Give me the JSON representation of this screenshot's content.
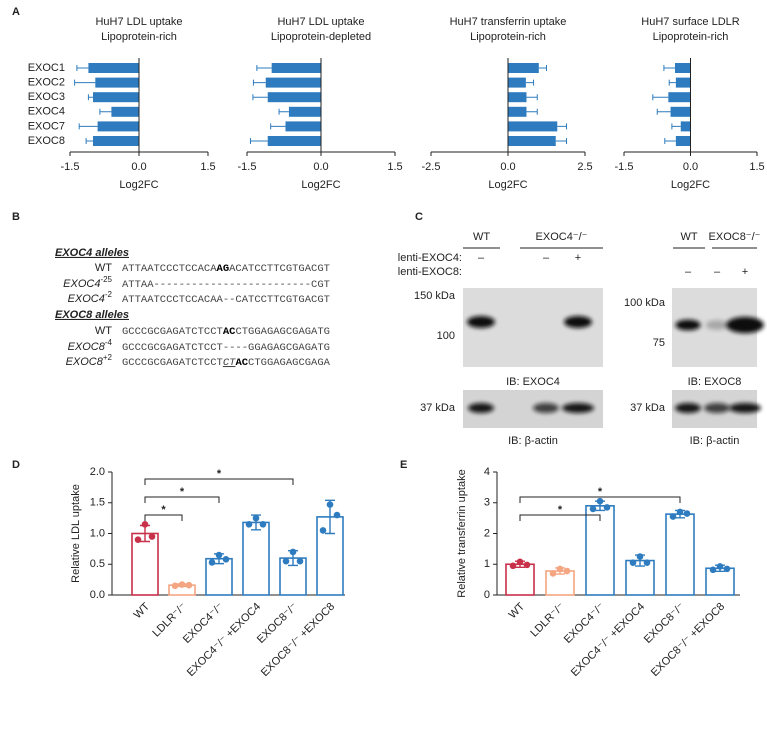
{
  "panel_labels": [
    "A",
    "B",
    "C",
    "D",
    "E"
  ],
  "chart_data": [
    {
      "type": "hbar",
      "title": "HuH7 LDL uptake",
      "subtitle": "Lipoprotein-rich",
      "categories": [
        "EXOC1",
        "EXOC2",
        "EXOC3",
        "EXOC4",
        "EXOC7",
        "EXOC8"
      ],
      "values": [
        -1.1,
        -0.95,
        -1.0,
        -0.6,
        -0.9,
        -1.0
      ],
      "errors": [
        0.25,
        0.45,
        0.1,
        0.25,
        0.4,
        0.15
      ],
      "color": "#2e7cbf",
      "xlim": [
        -1.5,
        1.5
      ],
      "xticks": [
        -1.5,
        {
          "value": 0,
          "label": "0.0"
        },
        1.5
      ],
      "xlabel": "Log2FC"
    },
    {
      "type": "hbar",
      "title": "HuH7 LDL uptake",
      "subtitle": "Lipoprotein-depleted",
      "values": [
        -1.0,
        -1.12,
        -1.08,
        -0.65,
        -0.72,
        -1.08
      ],
      "errors": [
        0.3,
        0.25,
        0.3,
        0.2,
        0.3,
        0.35
      ],
      "color": "#2e7cbf",
      "xlim": [
        -1.5,
        1.5
      ],
      "xticks": [
        -1.5,
        {
          "value": 0,
          "label": "0.0"
        },
        1.5
      ],
      "xlabel": "Log2FC"
    },
    {
      "type": "hbar",
      "title": "HuH7 transferrin uptake",
      "subtitle": "Lipoprotein-rich",
      "values": [
        1.0,
        0.58,
        0.6,
        0.6,
        1.6,
        1.55
      ],
      "errors": [
        0.25,
        0.25,
        0.35,
        0.35,
        0.3,
        0.35
      ],
      "color": "#2e7cbf",
      "xlim": [
        -2.5,
        2.5
      ],
      "xticks": [
        -2.5,
        {
          "value": 0,
          "label": "0.0"
        },
        2.5
      ],
      "xlabel": "Log2FC"
    },
    {
      "type": "hbar",
      "title": "HuH7 surface LDLR",
      "subtitle": "Lipoprotein-rich",
      "values": [
        -0.35,
        -0.33,
        -0.5,
        -0.45,
        -0.22,
        -0.33
      ],
      "errors": [
        0.25,
        0.15,
        0.35,
        0.3,
        0.2,
        0.25
      ],
      "color": "#2e7cbf",
      "xlim": [
        -1.5,
        1.5
      ],
      "xticks": [
        -1.5,
        {
          "value": 0,
          "label": "0.0"
        },
        1.5
      ],
      "xlabel": "Log2FC"
    },
    {
      "type": "bar_dots",
      "ylabel": "Relative LDL uptake",
      "categories": [
        "WT",
        "LDLR⁻/⁻",
        "EXOC4⁻/⁻",
        "EXOC4⁻/⁻ +EXOC4",
        "EXOC8⁻/⁻",
        "EXOC8⁻/⁻ +EXOC8"
      ],
      "values": [
        1.0,
        0.16,
        0.59,
        1.18,
        0.6,
        1.27
      ],
      "errors": [
        0.13,
        0.02,
        0.08,
        0.12,
        0.12,
        0.27
      ],
      "points": [
        [
          0.9,
          1.15,
          0.95
        ],
        [
          0.15,
          0.17,
          0.16
        ],
        [
          0.53,
          0.65,
          0.58
        ],
        [
          1.15,
          1.25,
          1.15
        ],
        [
          0.55,
          0.7,
          0.55
        ],
        [
          1.05,
          1.47,
          1.3
        ]
      ],
      "colors": [
        "#c8314a",
        "#f4a582",
        "#2e7cbf",
        "#2e7cbf",
        "#2e7cbf",
        "#2e7cbf"
      ],
      "ylim": [
        0,
        2
      ],
      "yticks": [
        {
          "value": 0,
          "label": "0.0"
        },
        0.5,
        {
          "value": 1,
          "label": "1.0"
        },
        1.5,
        {
          "value": 2,
          "label": "2.0"
        }
      ],
      "significance": [
        {
          "between": [
            "WT",
            "LDLR⁻/⁻"
          ],
          "label": "*"
        },
        {
          "between": [
            "WT",
            "EXOC4⁻/⁻"
          ],
          "label": "*"
        },
        {
          "between": [
            "WT",
            "EXOC8⁻/⁻"
          ],
          "label": "*"
        }
      ]
    },
    {
      "type": "bar_dots",
      "ylabel": "Relative transferrin uptake",
      "categories": [
        "WT",
        "LDLR⁻/⁻",
        "EXOC4⁻/⁻",
        "EXOC4⁻/⁻ +EXOC4",
        "EXOC8⁻/⁻",
        "EXOC8⁻/⁻ +EXOC8"
      ],
      "values": [
        1.0,
        0.78,
        2.9,
        1.12,
        2.63,
        0.87
      ],
      "errors": [
        0.1,
        0.1,
        0.15,
        0.18,
        0.12,
        0.1
      ],
      "points": [
        [
          0.95,
          1.08,
          0.98
        ],
        [
          0.7,
          0.85,
          0.78
        ],
        [
          2.8,
          3.05,
          2.85
        ],
        [
          1.05,
          1.25,
          1.05
        ],
        [
          2.55,
          2.7,
          2.65
        ],
        [
          0.82,
          0.93,
          0.85
        ]
      ],
      "colors": [
        "#c8314a",
        "#f4a582",
        "#2e7cbf",
        "#2e7cbf",
        "#2e7cbf",
        "#2e7cbf"
      ],
      "ylim": [
        0,
        4
      ],
      "yticks": [
        0,
        1,
        2,
        3,
        4
      ],
      "significance": [
        {
          "between": [
            "WT",
            "EXOC4⁻/⁻"
          ],
          "label": "*"
        },
        {
          "between": [
            "WT",
            "EXOC8⁻/⁻"
          ],
          "label": "*"
        }
      ]
    }
  ],
  "alleles": [
    {
      "heading": "EXOC4 alleles",
      "rows": [
        {
          "name": "WT",
          "seq": [
            {
              "text": "ATTAATCCCTCCACA"
            },
            {
              "text": "AG",
              "style": "bold"
            },
            {
              "text": "ACATCCTTCGTGACGT"
            }
          ]
        },
        {
          "name": "EXOC4",
          "sup": "-25",
          "seq": [
            {
              "text": "ATTAA-------------------------CGT"
            }
          ]
        },
        {
          "name": "EXOC4",
          "sup": "-2",
          "seq": [
            {
              "text": "ATTAATCCCTCCACAA--CATCCTTCGTGACGT"
            }
          ]
        }
      ]
    },
    {
      "heading": "EXOC8 alleles",
      "rows": [
        {
          "name": "WT",
          "seq": [
            {
              "text": "GCCCGCGAGATCTCCT"
            },
            {
              "text": "AC",
              "style": "bold"
            },
            {
              "text": "CTGGAGAGCGAGATG"
            }
          ]
        },
        {
          "name": "EXOC8",
          "sup": "-4",
          "seq": [
            {
              "text": "GCCCGCGAGATCTCCT----GGAGAGCGAGATG"
            }
          ]
        },
        {
          "name": "EXOC8",
          "sup": "+2",
          "seq": [
            {
              "text": "GCCCGCGAGATCTCCT"
            },
            {
              "text": "CT",
              "style": "underline-italic"
            },
            {
              "text": "AC",
              "style": "bold"
            },
            {
              "text": "CTGGAGAGCGAGA"
            }
          ]
        }
      ]
    }
  ],
  "blots": [
    {
      "groups": [
        "WT",
        "EXOC4⁻/⁻"
      ],
      "treatment": "lenti-EXOC4:",
      "signs": [
        "–",
        "–",
        "+"
      ],
      "markers": [
        "150 kDa",
        "100"
      ],
      "ib_top": "IB: EXOC4",
      "marker_bottom": "37 kDa",
      "ib_bottom": "IB: β-actin"
    },
    {
      "groups": [
        "WT",
        "EXOC8⁻/⁻"
      ],
      "treatment": "lenti-EXOC8:",
      "signs": [
        "–",
        "–",
        "+"
      ],
      "markers": [
        "100 kDa",
        "75"
      ],
      "ib_top": "IB: EXOC8",
      "marker_bottom": "37 kDa",
      "ib_bottom": "IB: β-actin"
    }
  ]
}
